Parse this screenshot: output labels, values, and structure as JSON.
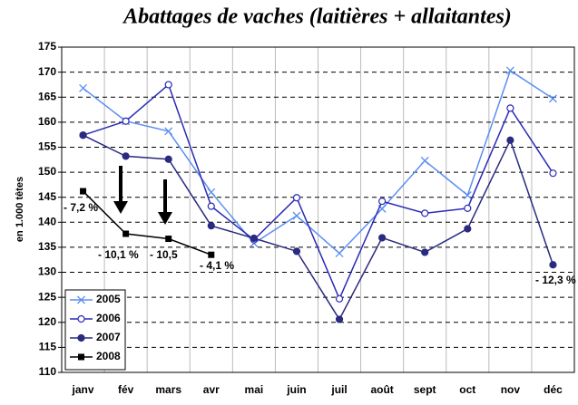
{
  "chart_data": {
    "type": "line",
    "title": "Abattages de vaches (laitières + allaitantes)",
    "y_label": "en 1.000 têtes",
    "categories": [
      "janv",
      "fév",
      "mars",
      "avr",
      "mai",
      "juin",
      "juil",
      "août",
      "sept",
      "oct",
      "nov",
      "déc"
    ],
    "series": [
      {
        "name": "2005",
        "color": "#5b8ff0",
        "marker": "x",
        "values": [
          166.8,
          160.2,
          158.2,
          146,
          135.8,
          141.3,
          133.8,
          142.7,
          152.3,
          145.4,
          170.3,
          164.7
        ]
      },
      {
        "name": "2006",
        "color": "#2a2ab8",
        "marker": "open-circle",
        "values": [
          157.4,
          160.2,
          167.5,
          143.2,
          136.5,
          144.9,
          124.7,
          144.2,
          141.8,
          142.8,
          162.8,
          149.8
        ]
      },
      {
        "name": "2007",
        "color": "#2a2a80",
        "marker": "circle",
        "values": [
          157.4,
          153.2,
          152.6,
          139.3,
          136.8,
          134.2,
          120.6,
          136.9,
          134,
          138.7,
          156.4,
          131.5
        ]
      },
      {
        "name": "2008",
        "color": "#000000",
        "marker": "square",
        "values": [
          146.2,
          137.7,
          136.7,
          133.5,
          null,
          null,
          null,
          null,
          null,
          null,
          null,
          null
        ]
      }
    ],
    "annotations": [
      "- 7,2 %",
      "- 10,1 %",
      "- 10,5",
      "- 4,1 %",
      "- 12,3 %"
    ],
    "ylim": [
      110,
      175
    ],
    "yticks": [
      110,
      115,
      120,
      125,
      130,
      135,
      140,
      145,
      150,
      155,
      160,
      165,
      170,
      175
    ],
    "grid": true,
    "legend": "lower left"
  }
}
